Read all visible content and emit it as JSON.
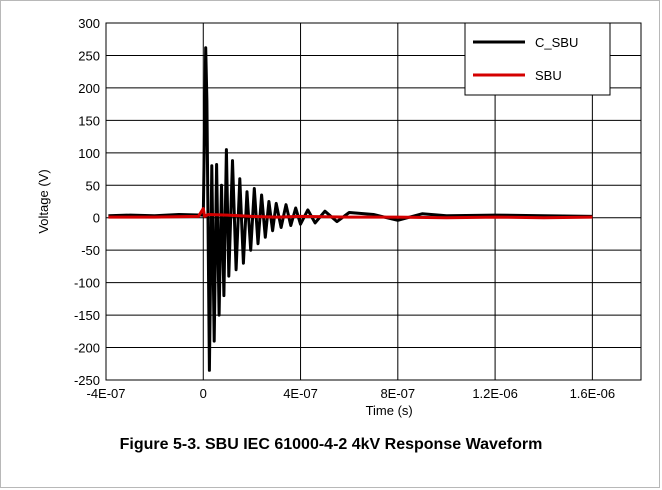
{
  "chart_data": {
    "type": "line",
    "title": "Figure 5-3. SBU IEC 61000-4-2 4kV Response Waveform",
    "xlabel": "Time (s)",
    "ylabel": "Voltage (V)",
    "xlim": [
      -4e-07,
      1.8e-06
    ],
    "ylim": [
      -250,
      300
    ],
    "x_ticks": [
      -4e-07,
      0,
      4e-07,
      8e-07,
      1.2e-06,
      1.6e-06
    ],
    "x_tick_labels": [
      "-4E-07",
      "0",
      "4E-07",
      "8E-07",
      "1.2E-06",
      "1.6E-06"
    ],
    "y_ticks": [
      -250,
      -200,
      -150,
      -100,
      -50,
      0,
      50,
      100,
      150,
      200,
      250,
      300
    ],
    "y_tick_labels": [
      "-250",
      "-200",
      "-150",
      "-100",
      "-50",
      "0",
      "50",
      "100",
      "150",
      "200",
      "250",
      "300"
    ],
    "grid": true,
    "legend_position": "top-right",
    "series": [
      {
        "name": "C_SBU",
        "color": "#000000",
        "x": [
          -3.9e-07,
          -3e-07,
          -2e-07,
          -1e-07,
          0,
          1e-08,
          1.5e-08,
          2.5e-08,
          3.5e-08,
          4.5e-08,
          5.5e-08,
          6.5e-08,
          7.5e-08,
          8.5e-08,
          9.5e-08,
          1.05e-07,
          1.2e-07,
          1.35e-07,
          1.5e-07,
          1.65e-07,
          1.8e-07,
          1.95e-07,
          2.1e-07,
          2.25e-07,
          2.4e-07,
          2.55e-07,
          2.7e-07,
          2.85e-07,
          3e-07,
          3.2e-07,
          3.4e-07,
          3.6e-07,
          3.8e-07,
          4e-07,
          4.3e-07,
          4.6e-07,
          5e-07,
          5.5e-07,
          6e-07,
          7e-07,
          8e-07,
          9e-07,
          1e-06,
          1.2e-06,
          1.4e-06,
          1.6e-06
        ],
        "y": [
          3,
          4,
          3,
          5,
          4,
          262,
          180,
          -235,
          80,
          -190,
          82,
          -150,
          50,
          -120,
          105,
          -90,
          88,
          -80,
          60,
          -70,
          40,
          -50,
          45,
          -40,
          35,
          -30,
          25,
          -20,
          22,
          -15,
          20,
          -12,
          15,
          -10,
          12,
          -8,
          10,
          -6,
          8,
          5,
          -4,
          6,
          3,
          4,
          3,
          2
        ]
      },
      {
        "name": "SBU",
        "color": "#d40000",
        "x": [
          -3.9e-07,
          -2e-07,
          -2e-08,
          0,
          5e-09,
          2e-08,
          1e-07,
          2e-07,
          3e-07,
          4e-07,
          6e-07,
          8e-07,
          1e-06,
          1.2e-06,
          1.4e-06,
          1.6e-06
        ],
        "y": [
          1,
          1,
          2,
          14,
          2,
          5,
          4,
          2,
          1,
          2,
          1,
          1,
          0,
          1,
          0,
          1
        ]
      }
    ]
  }
}
